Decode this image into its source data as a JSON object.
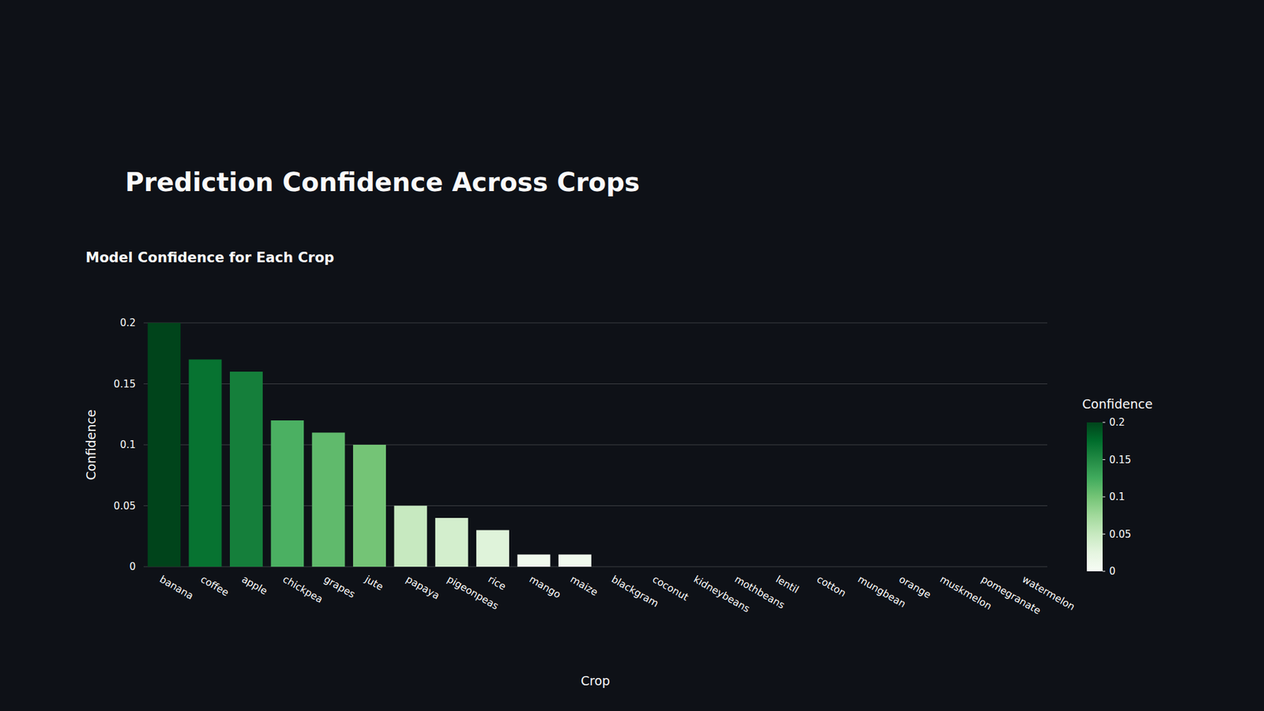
{
  "heading": "Prediction Confidence Across Crops",
  "chart_data": {
    "type": "bar",
    "title": "Model Confidence for Each Crop",
    "x_label": "Crop",
    "y_label": "Confidence",
    "categories": [
      "banana",
      "coffee",
      "apple",
      "chickpea",
      "grapes",
      "jute",
      "papaya",
      "pigeonpeas",
      "rice",
      "mango",
      "maize",
      "blackgram",
      "coconut",
      "kidneybeans",
      "mothbeans",
      "lentil",
      "cotton",
      "mungbean",
      "orange",
      "muskmelon",
      "pomegranate",
      "watermelon"
    ],
    "values": [
      0.2,
      0.17,
      0.16,
      0.12,
      0.11,
      0.1,
      0.05,
      0.04,
      0.03,
      0.01,
      0.01,
      0,
      0,
      0,
      0,
      0,
      0,
      0,
      0,
      0,
      0,
      0
    ],
    "ylim": [
      0,
      0.2
    ],
    "yticks": [
      0,
      0.05,
      0.1,
      0.15,
      0.2
    ],
    "grid": true,
    "colorbar_title": "Confidence",
    "colorbar_range": [
      0,
      0.2
    ],
    "colorbar_ticks": [
      0,
      0.05,
      0.1,
      0.15,
      0.2
    ]
  }
}
